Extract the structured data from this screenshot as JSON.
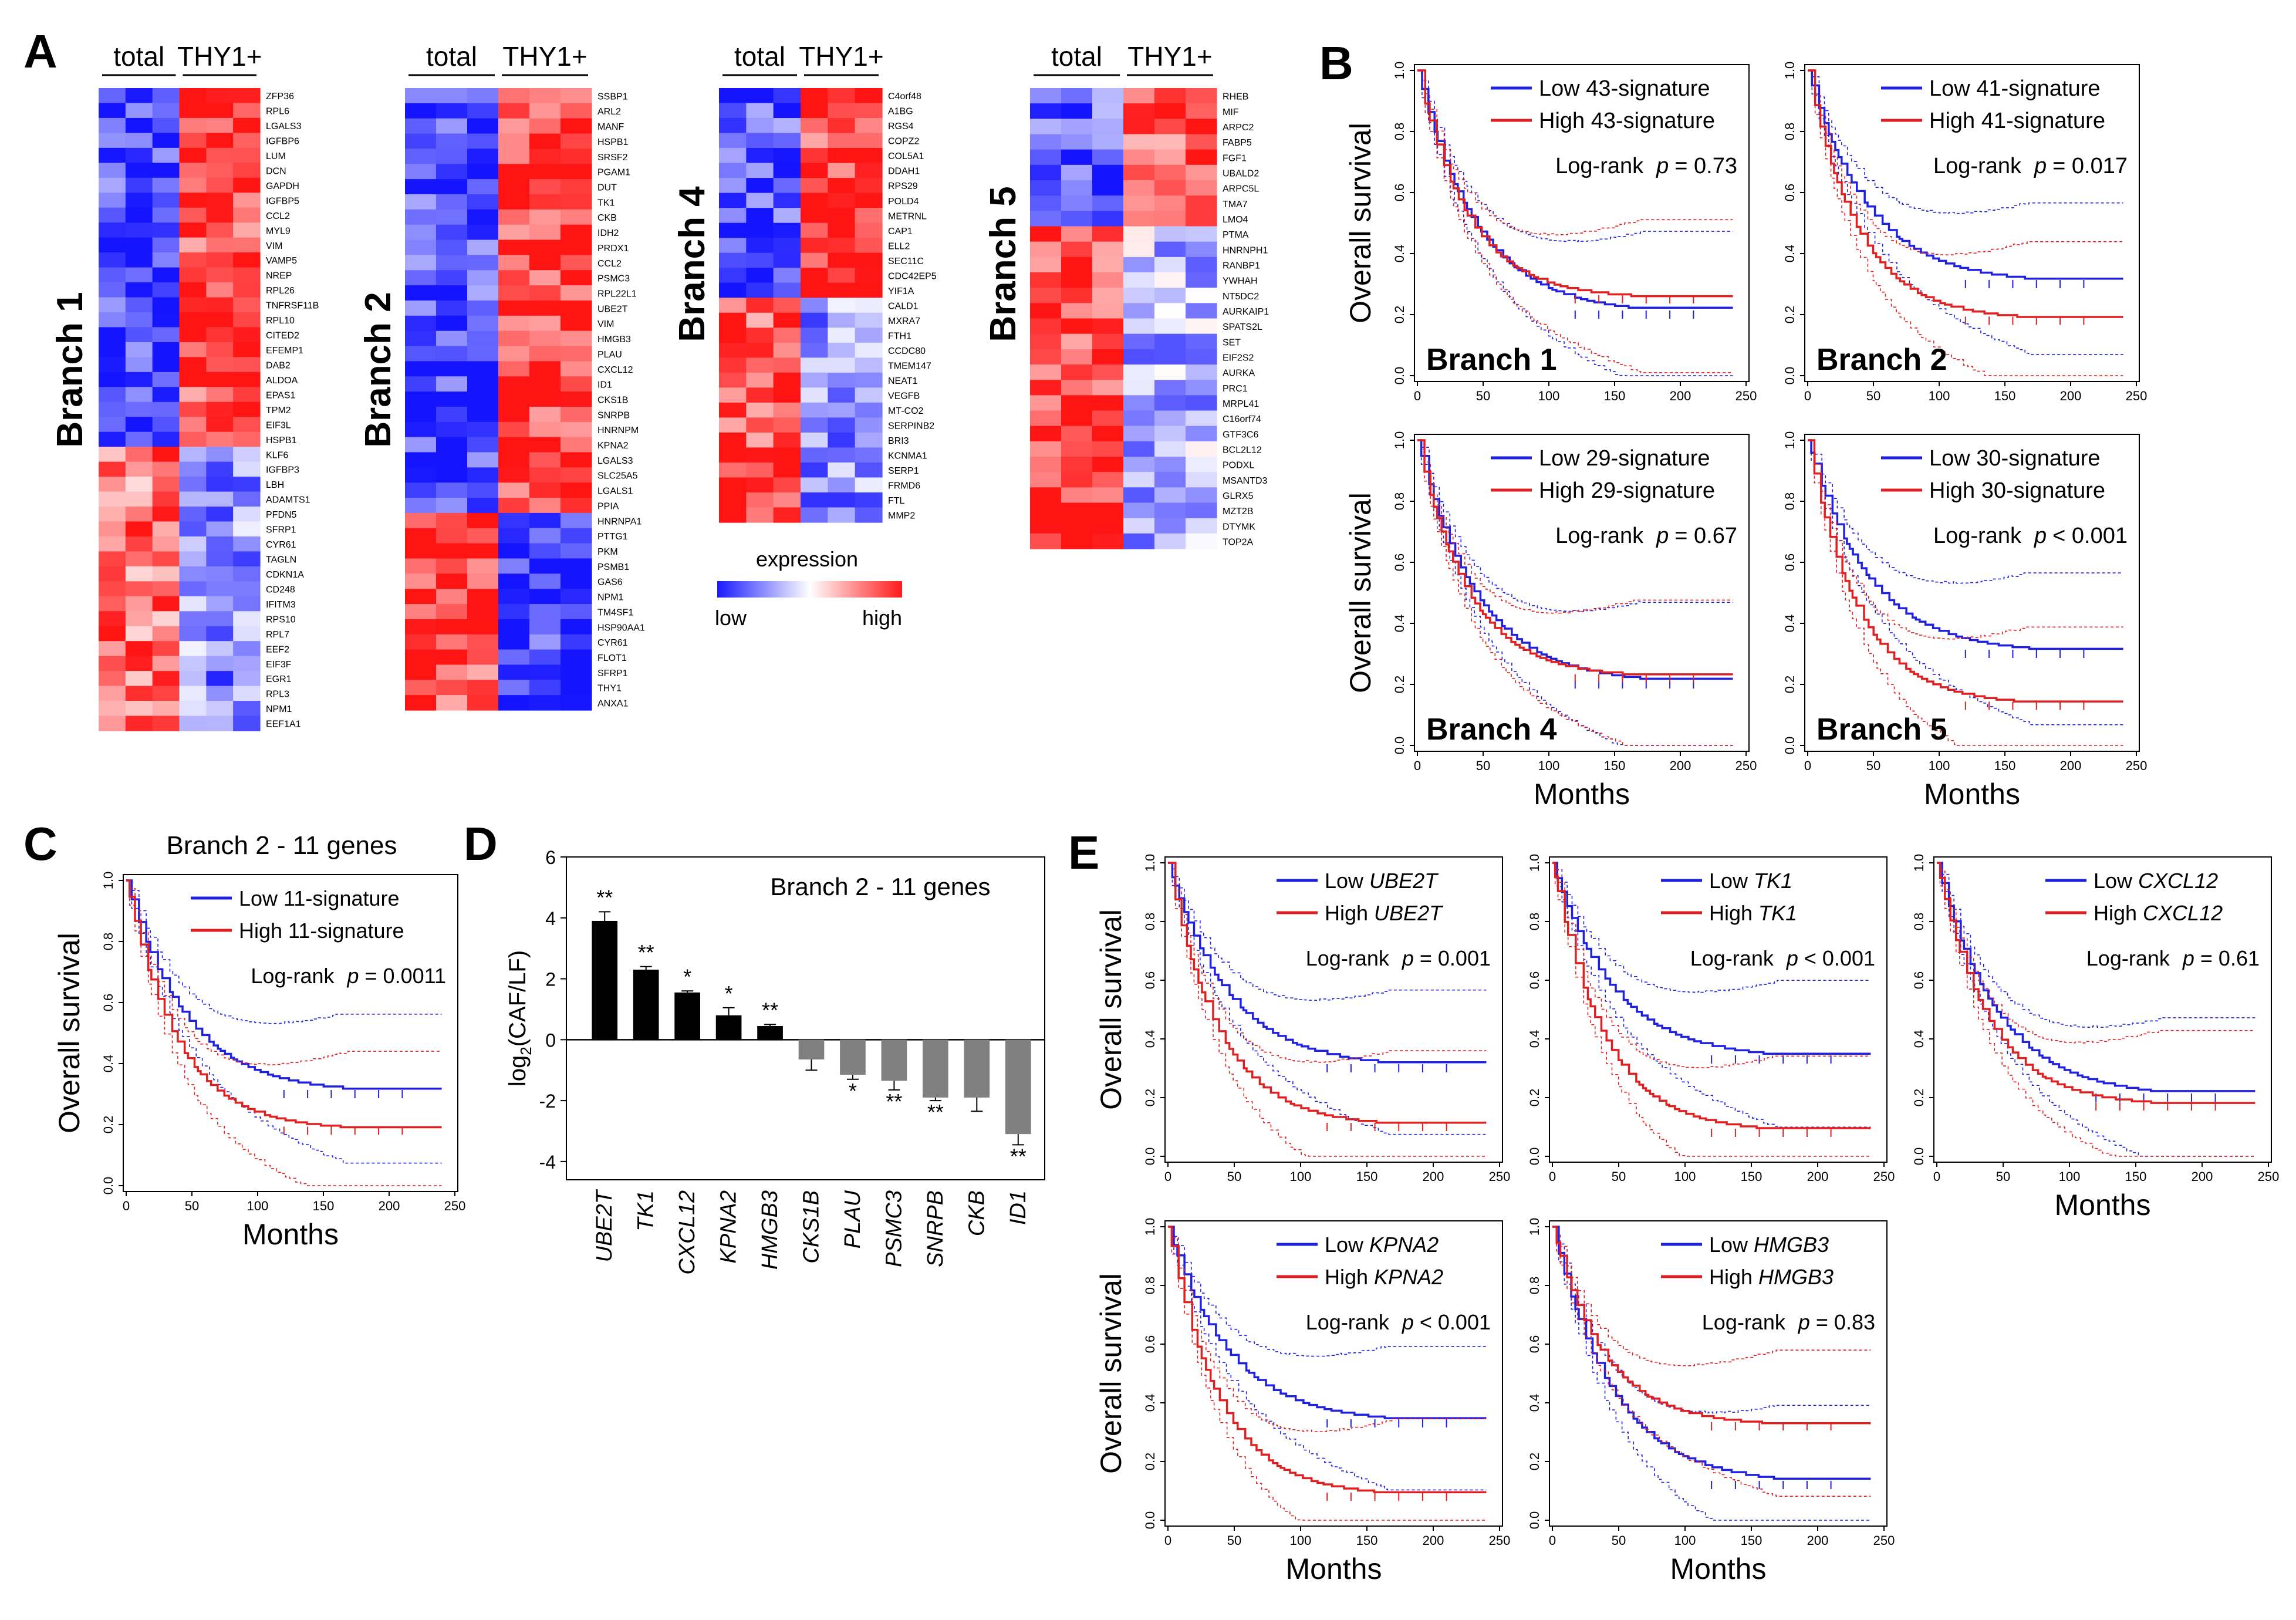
{
  "panels": {
    "A": "A",
    "B": "B",
    "C": "C",
    "D": "D",
    "E": "E"
  },
  "heatmap_header": {
    "total": "total",
    "thy1": "THY1+"
  },
  "legend": {
    "title": "expression",
    "low": "low",
    "high": "high",
    "colors": {
      "low": "#1a1aff",
      "mid": "#ffffff",
      "high": "#ff1a1a"
    }
  },
  "colors": {
    "low_line": "#2020e0",
    "high_line": "#e02020",
    "bar_up": "#000000",
    "bar_down": "#808080"
  },
  "heatmaps": [
    {
      "branch": "Branch 1",
      "genes": [
        "ZFP36",
        "RPL6",
        "LGALS3",
        "IGFBP6",
        "LUM",
        "DCN",
        "GAPDH",
        "IGFBP5",
        "CCL2",
        "MYL9",
        "VIM",
        "VAMP5",
        "NREP",
        "RPL26",
        "TNFRSF11B",
        "RPL10",
        "CITED2",
        "EFEMP1",
        "DAB2",
        "ALDOA",
        "EPAS1",
        "TPM2",
        "EIF3L",
        "HSPB1",
        "KLF6",
        "IGFBP3",
        "LBH",
        "ADAMTS1",
        "PFDN5",
        "SFRP1",
        "CYR61",
        "TAGLN",
        "CDKN1A",
        "CD248",
        "IFITM3",
        "RPS10",
        "RPL7",
        "EEF2",
        "EIF3F",
        "EGR1",
        "RPL3",
        "NPM1",
        "EEF1A1"
      ]
    },
    {
      "branch": "Branch 2",
      "genes": [
        "SSBP1",
        "ARL2",
        "MANF",
        "HSPB1",
        "SRSF2",
        "PGAM1",
        "DUT",
        "TK1",
        "CKB",
        "IDH2",
        "PRDX1",
        "CCL2",
        "PSMC3",
        "RPL22L1",
        "UBE2T",
        "VIM",
        "HMGB3",
        "PLAU",
        "CXCL12",
        "ID1",
        "CKS1B",
        "SNRPB",
        "HNRNPM",
        "KPNA2",
        "LGALS3",
        "SLC25A5",
        "LGALS1",
        "PPIA",
        "HNRNPA1",
        "PTTG1",
        "PKM",
        "PSMB1",
        "GAS6",
        "NPM1",
        "TM4SF1",
        "HSP90AA1",
        "CYR61",
        "FLOT1",
        "SFRP1",
        "THY1",
        "ANXA1"
      ]
    },
    {
      "branch": "Branch 4",
      "genes": [
        "C4orf48",
        "A1BG",
        "RGS4",
        "COPZ2",
        "COL5A1",
        "DDAH1",
        "RPS29",
        "POLD4",
        "METRNL",
        "CAP1",
        "ELL2",
        "SEC11C",
        "CDC42EP5",
        "YIF1A",
        "CALD1",
        "MXRA7",
        "FTH1",
        "CCDC80",
        "TMEM147",
        "NEAT1",
        "VEGFB",
        "MT-CO2",
        "SERPINB2",
        "BRI3",
        "KCNMA1",
        "SERP1",
        "FRMD6",
        "FTL",
        "MMP2"
      ]
    },
    {
      "branch": "Branch 5",
      "genes": [
        "RHEB",
        "MIF",
        "ARPC2",
        "FABP5",
        "FGF1",
        "UBALD2",
        "ARPC5L",
        "TMA7",
        "LMO4",
        "PTMA",
        "HNRNPH1",
        "RANBP1",
        "YWHAH",
        "NT5DC2",
        "AURKAIP1",
        "SPATS2L",
        "SET",
        "EIF2S2",
        "AURKA",
        "PRC1",
        "MRPL41",
        "C16orf74",
        "GTF3C6",
        "BCL2L12",
        "PODXL",
        "MSANTD3",
        "GLRX5",
        "MZT2B",
        "DTYMK",
        "TOP2A"
      ]
    }
  ],
  "km_common": {
    "ylabel": "Overall survival",
    "xlabel": "Months",
    "xticks": [
      "0",
      "50",
      "100",
      "150",
      "200",
      "250"
    ],
    "yticks": [
      "0.0",
      "0.2",
      "0.4",
      "0.6",
      "0.8",
      "1.0"
    ],
    "logrank": "Log-rank",
    "p": "p"
  },
  "km_B": [
    {
      "branch": "Branch 1",
      "low": "Low 43-signature",
      "high": "High 43-signature",
      "pval": "= 0.73"
    },
    {
      "branch": "Branch 2",
      "low": "Low 41-signature",
      "high": "High 41-signature",
      "pval": "= 0.017"
    },
    {
      "branch": "Branch 4",
      "low": "Low 29-signature",
      "high": "High 29-signature",
      "pval": "= 0.67"
    },
    {
      "branch": "Branch 5",
      "low": "Low 30-signature",
      "high": "High 30-signature",
      "pval": "< 0.001"
    }
  ],
  "km_C": {
    "title": "Branch 2 - 11 genes",
    "low": "Low 11-signature",
    "high": "High 11-signature",
    "pval": "= 0.0011"
  },
  "km_E": [
    {
      "low": "Low",
      "high": "High",
      "gene": "UBE2T",
      "pval": "= 0.001"
    },
    {
      "low": "Low",
      "high": "High",
      "gene": "TK1",
      "pval": "< 0.001"
    },
    {
      "low": "Low",
      "high": "High",
      "gene": "CXCL12",
      "pval": "= 0.61"
    },
    {
      "low": "Low",
      "high": "High",
      "gene": "KPNA2",
      "pval": "< 0.001"
    },
    {
      "low": "Low",
      "high": "High",
      "gene": "HMGB3",
      "pval": "= 0.83"
    }
  ],
  "chart_data": [
    {
      "type": "bar",
      "title": "Branch 2 - 11 genes",
      "ylabel": "log2(CAF/LF)",
      "ylabel_main": "log",
      "ylabel_sub": "2",
      "ylabel_rest": "(CAF/LF)",
      "ylim": [
        -4.6,
        6
      ],
      "yticks": [
        "-4",
        "-2",
        "0",
        "2",
        "4",
        "6"
      ],
      "categories": [
        "UBE2T",
        "TK1",
        "CXCL12",
        "KPNA2",
        "HMGB3",
        "CKS1B",
        "PLAU",
        "PSMC3",
        "SNRPB",
        "CKB",
        "ID1"
      ],
      "values": [
        3.9,
        2.3,
        1.55,
        0.8,
        0.45,
        -0.65,
        -1.15,
        -1.35,
        -1.9,
        -1.9,
        -3.1
      ],
      "errors": [
        0.3,
        0.1,
        0.05,
        0.25,
        0.05,
        0.35,
        0.15,
        0.3,
        0.1,
        0.45,
        0.35
      ],
      "significance": [
        "**",
        "**",
        "*",
        "*",
        "**",
        "",
        "*",
        "**",
        "**",
        "",
        "**"
      ]
    },
    {
      "type": "line",
      "description": "Kaplan-Meier survival curves, overall survival vs months",
      "xlim": [
        0,
        250
      ],
      "ylim": [
        0,
        1
      ]
    }
  ]
}
